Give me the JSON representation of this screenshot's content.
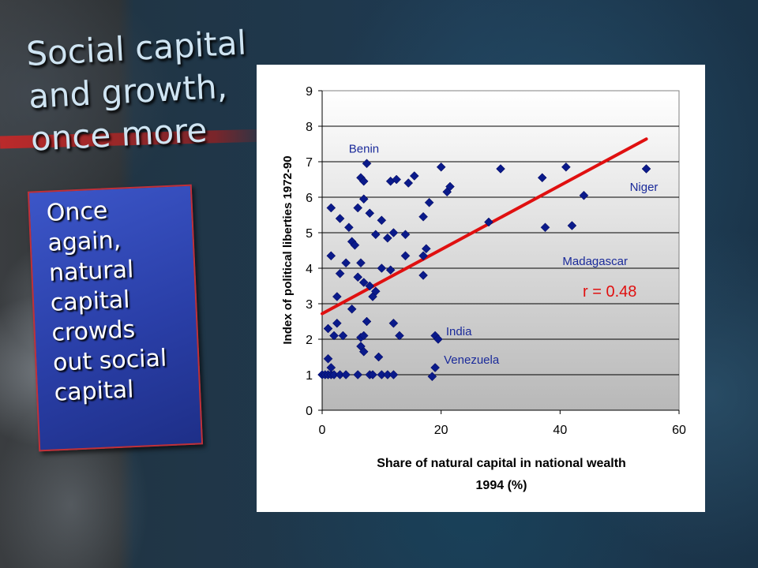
{
  "slide": {
    "title_lines": [
      "Social capital",
      "and growth,",
      "once more"
    ],
    "body_lines": [
      "Once",
      "again,",
      "natural",
      "capital",
      "crowds",
      "out social",
      "capital"
    ]
  },
  "chart_data": {
    "type": "scatter",
    "xlabel_lines": [
      "Share of natural capital in national wealth",
      "1994 (%)"
    ],
    "ylabel": "Index of political liberties 1972-90",
    "xlim": [
      0,
      60
    ],
    "ylim": [
      0,
      9
    ],
    "x_ticks": [
      "0",
      "20",
      "40",
      "60"
    ],
    "y_ticks": [
      "0",
      "1",
      "2",
      "3",
      "4",
      "5",
      "6",
      "7",
      "8",
      "9"
    ],
    "grid": true,
    "marker_color": "#0a1a8a",
    "trend_color": "#e01010",
    "trendline": {
      "x": [
        0,
        54.5
      ],
      "y": [
        2.72,
        7.64
      ]
    },
    "correlation_label": "r = 0.48",
    "annotations": [
      {
        "text": "Benin",
        "x": 7.8,
        "y": 6.95
      },
      {
        "text": "Niger",
        "x": 54.5,
        "y": 6.8
      },
      {
        "text": "Madagascar",
        "x": 42.0,
        "y": 5.2
      },
      {
        "text": "India",
        "x": 19.5,
        "y": 2.0
      },
      {
        "text": "Venezuela",
        "x": 19.0,
        "y": 1.2
      }
    ],
    "points": [
      [
        0,
        1
      ],
      [
        0.5,
        1
      ],
      [
        1,
        1
      ],
      [
        1.5,
        1
      ],
      [
        2,
        1
      ],
      [
        3,
        1
      ],
      [
        4,
        1
      ],
      [
        6,
        1
      ],
      [
        8,
        1
      ],
      [
        8.5,
        1
      ],
      [
        10,
        1
      ],
      [
        11,
        1
      ],
      [
        12,
        1
      ],
      [
        18.5,
        0.95
      ],
      [
        1,
        1.45
      ],
      [
        1.5,
        1.2
      ],
      [
        19,
        1.2
      ],
      [
        9.5,
        1.5
      ],
      [
        1,
        2.3
      ],
      [
        2,
        2.1
      ],
      [
        2.5,
        2.45
      ],
      [
        3.5,
        2.1
      ],
      [
        6.5,
        2.05
      ],
      [
        7,
        2.1
      ],
      [
        12,
        2.45
      ],
      [
        13,
        2.1
      ],
      [
        19,
        2.1
      ],
      [
        19.5,
        2.0
      ],
      [
        6.5,
        1.8
      ],
      [
        7,
        1.65
      ],
      [
        7.5,
        2.5
      ],
      [
        2.5,
        3.2
      ],
      [
        5,
        2.85
      ],
      [
        8,
        3.5
      ],
      [
        8.5,
        3.2
      ],
      [
        9,
        3.35
      ],
      [
        3,
        3.85
      ],
      [
        4,
        4.15
      ],
      [
        6,
        3.75
      ],
      [
        6.5,
        4.15
      ],
      [
        7,
        3.6
      ],
      [
        10,
        4.0
      ],
      [
        11.5,
        3.95
      ],
      [
        14,
        4.35
      ],
      [
        17,
        4.35
      ],
      [
        17.5,
        4.55
      ],
      [
        17,
        3.8
      ],
      [
        1.5,
        4.35
      ],
      [
        4.5,
        5.15
      ],
      [
        5,
        4.75
      ],
      [
        5.5,
        4.65
      ],
      [
        9,
        4.95
      ],
      [
        11,
        4.85
      ],
      [
        12,
        5.0
      ],
      [
        14,
        4.95
      ],
      [
        1.5,
        5.7
      ],
      [
        3,
        5.4
      ],
      [
        6,
        5.7
      ],
      [
        7,
        5.95
      ],
      [
        8,
        5.55
      ],
      [
        10,
        5.35
      ],
      [
        17,
        5.45
      ],
      [
        18,
        5.85
      ],
      [
        21,
        6.15
      ],
      [
        21.5,
        6.3
      ],
      [
        28,
        5.3
      ],
      [
        6.5,
        6.55
      ],
      [
        7,
        6.45
      ],
      [
        11.5,
        6.45
      ],
      [
        12.5,
        6.5
      ],
      [
        14.5,
        6.4
      ],
      [
        15.5,
        6.6
      ],
      [
        20,
        6.85
      ],
      [
        30,
        6.8
      ],
      [
        37,
        6.55
      ],
      [
        41,
        6.85
      ],
      [
        44,
        6.05
      ],
      [
        7.5,
        6.95
      ],
      [
        37.5,
        5.15
      ],
      [
        42,
        5.2
      ],
      [
        54.5,
        6.8
      ]
    ]
  }
}
